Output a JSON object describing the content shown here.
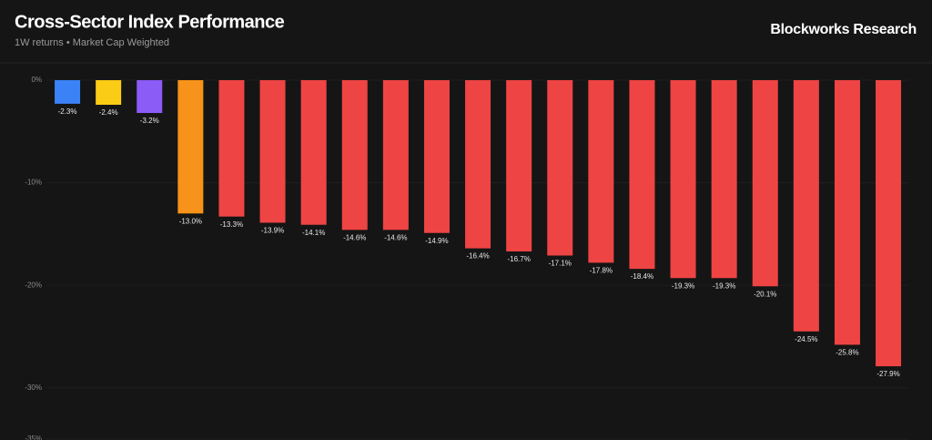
{
  "chart_data": {
    "type": "bar",
    "title": "Cross-Sector Index Performance",
    "subtitle": "1W returns • Market Cap Weighted",
    "brand": "Blockworks Research",
    "categories": [
      null,
      null,
      null,
      null,
      null,
      null,
      null,
      null,
      null,
      null,
      null,
      null,
      null,
      null,
      null,
      null,
      null,
      null,
      null,
      null,
      null
    ],
    "values": [
      -2.3,
      -2.4,
      -3.2,
      -13.0,
      -13.3,
      -13.9,
      -14.1,
      -14.6,
      -14.6,
      -14.9,
      -16.4,
      -16.7,
      -17.1,
      -17.8,
      -18.4,
      -19.3,
      -19.3,
      -20.1,
      -24.5,
      -25.8,
      -27.9
    ],
    "value_labels": [
      "-2.3%",
      "-2.4%",
      "-3.2%",
      "-13.0%",
      "-13.3%",
      "-13.9%",
      "-14.1%",
      "-14.6%",
      "-14.6%",
      "-14.9%",
      "-16.4%",
      "-16.7%",
      "-17.1%",
      "-17.8%",
      "-18.4%",
      "-19.3%",
      "-19.3%",
      "-20.1%",
      "-24.5%",
      "-25.8%",
      "-27.9%"
    ],
    "colors": [
      "#3b82f6",
      "#facc15",
      "#8b5cf6",
      "#f7931a",
      "#ef4444",
      "#ef4444",
      "#ef4444",
      "#ef4444",
      "#ef4444",
      "#ef4444",
      "#ef4444",
      "#ef4444",
      "#ef4444",
      "#ef4444",
      "#ef4444",
      "#ef4444",
      "#ef4444",
      "#ef4444",
      "#ef4444",
      "#ef4444",
      "#ef4444"
    ],
    "ylim": [
      -35,
      0
    ],
    "yticks": [
      {
        "value": 0,
        "label": "0%"
      },
      {
        "value": -10,
        "label": "-10%"
      },
      {
        "value": -20,
        "label": "-20%"
      },
      {
        "value": -30,
        "label": "-30%"
      },
      {
        "value": -35,
        "label": "-35%"
      }
    ],
    "grid": true
  }
}
